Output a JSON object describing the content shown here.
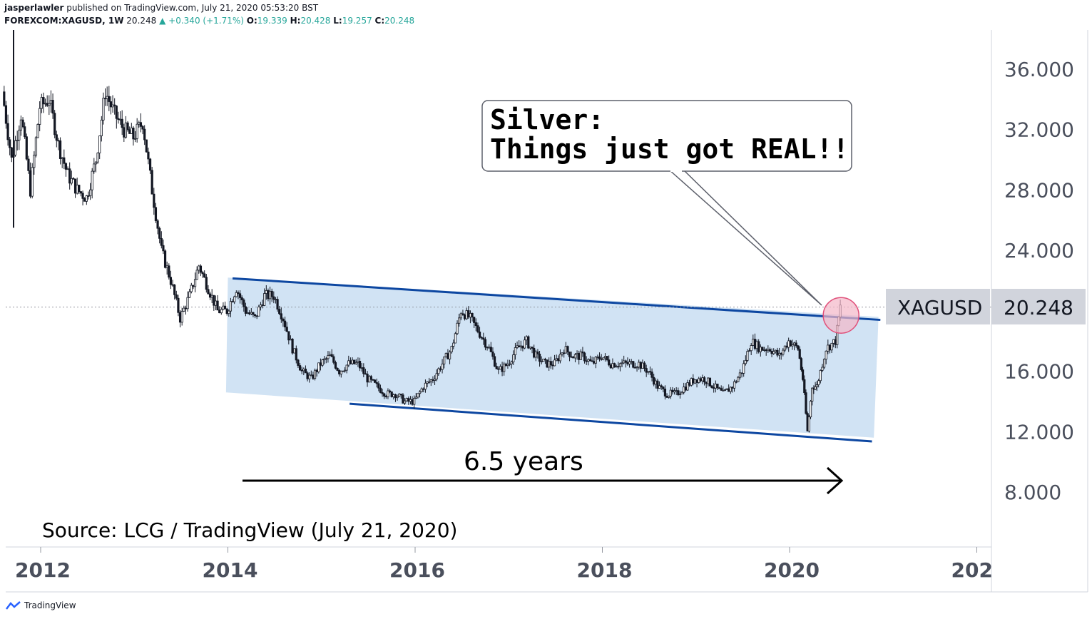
{
  "header": {
    "author": "jasperlawler",
    "published_text": "published on TradingView.com, July 21, 2020 05:53:20 BST",
    "symbol": "FOREXCOM:XAGUSD, 1W",
    "last": "20.248",
    "change": "▲ +0.340 (+1.71%)",
    "o_label": "O:",
    "o": "19.339",
    "h_label": "H:",
    "h": "20.428",
    "l_label": "L:",
    "l": "19.257",
    "c_label": "C:",
    "c": "20.248"
  },
  "callout": {
    "line1": "Silver:",
    "line2": "Things just got REAL!!"
  },
  "annotations": {
    "duration": "6.5 years",
    "source": "Source: LCG / TradingView (July 21, 2020)"
  },
  "price_tag": {
    "symbol": "XAGUSD",
    "value": "20.248"
  },
  "footer": {
    "brand": "TradingView"
  },
  "colors": {
    "channel_fill": "#cfe2f3",
    "channel_line": "#0d47a1",
    "candle": "#131722",
    "highlight_circle": "#f4b6c8",
    "tag_bg": "#d1d4dc"
  },
  "chart_data": {
    "type": "candlestick",
    "title": "FOREXCOM:XAGUSD, 1W",
    "x_ticks": [
      "2012",
      "2014",
      "2016",
      "2018",
      "2020",
      "202"
    ],
    "y_ticks": [
      "36.000",
      "32.000",
      "28.000",
      "24.000",
      "20.000",
      "16.000",
      "12.000",
      "8.000"
    ],
    "ylim": [
      5.0,
      38.5
    ],
    "xlim": [
      2011.55,
      2021.35
    ],
    "last_price": 20.248,
    "series": [
      {
        "x": [
          2011.6,
          2011.7,
          2011.8,
          2011.9,
          2012.0,
          2012.1,
          2012.2,
          2012.3,
          2012.4,
          2012.5,
          2012.6,
          2012.7,
          2012.8,
          2012.9,
          2013.0,
          2013.1,
          2013.2,
          2013.3,
          2013.4,
          2013.5,
          2013.6,
          2013.7,
          2013.8,
          2013.9,
          2014.0,
          2014.1,
          2014.2,
          2014.3,
          2014.4,
          2014.5,
          2014.6,
          2014.7,
          2014.8,
          2014.9,
          2015.0,
          2015.1,
          2015.2,
          2015.3,
          2015.4,
          2015.5,
          2015.6,
          2015.7,
          2015.8,
          2015.9,
          2016.0,
          2016.1,
          2016.2,
          2016.3,
          2016.4,
          2016.5,
          2016.6,
          2016.7,
          2016.8,
          2016.9,
          2017.0,
          2017.1,
          2017.2,
          2017.3,
          2017.4,
          2017.5,
          2017.6,
          2017.7,
          2017.8,
          2017.9,
          2018.0,
          2018.1,
          2018.2,
          2018.3,
          2018.4,
          2018.5,
          2018.6,
          2018.7,
          2018.8,
          2018.9,
          2019.0,
          2019.1,
          2019.2,
          2019.3,
          2019.4,
          2019.5,
          2019.6,
          2019.7,
          2019.8,
          2019.9,
          2020.0,
          2020.1,
          2020.15,
          2020.2,
          2020.25,
          2020.3,
          2020.4,
          2020.5,
          2020.55
        ],
        "close": [
          34.5,
          30.0,
          33.0,
          28.0,
          33.5,
          34.0,
          31.0,
          29.0,
          28.0,
          27.5,
          30.0,
          34.5,
          33.0,
          32.0,
          31.5,
          32.5,
          28.0,
          24.0,
          22.0,
          19.5,
          21.0,
          23.0,
          21.5,
          20.0,
          20.0,
          21.5,
          20.0,
          19.5,
          21.0,
          21.0,
          19.5,
          17.5,
          16.0,
          15.5,
          16.5,
          17.0,
          16.0,
          16.5,
          16.5,
          15.5,
          15.0,
          14.5,
          14.5,
          14.0,
          14.0,
          15.0,
          15.5,
          16.5,
          17.5,
          20.0,
          19.5,
          18.5,
          17.5,
          16.0,
          16.5,
          17.5,
          18.0,
          17.0,
          16.5,
          16.5,
          17.5,
          17.0,
          17.0,
          16.5,
          17.0,
          16.5,
          16.5,
          16.5,
          16.5,
          16.0,
          15.0,
          14.5,
          14.5,
          15.0,
          15.5,
          15.5,
          15.0,
          14.5,
          15.0,
          16.0,
          18.0,
          17.5,
          17.5,
          17.0,
          18.0,
          17.5,
          15.5,
          12.0,
          15.0,
          15.0,
          17.5,
          18.0,
          20.248
        ]
      }
    ],
    "annotations": [
      "Silver:",
      "Things just got REAL!!",
      "6.5 years",
      "Source: LCG / TradingView (July 21, 2020)",
      "XAGUSD",
      "20.248"
    ]
  }
}
